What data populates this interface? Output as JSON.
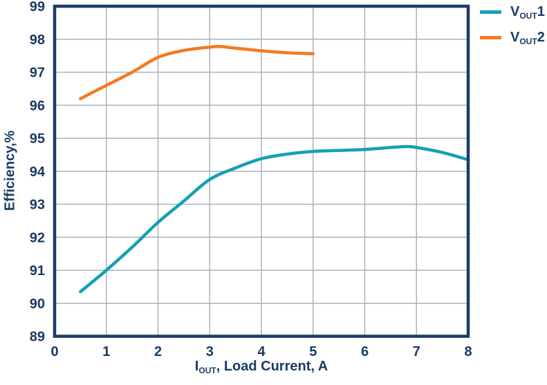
{
  "chart_data": {
    "type": "line",
    "title": "",
    "xlabel_parts": [
      {
        "text": "I"
      },
      {
        "text": "OUT",
        "sub": true
      },
      {
        "text": ", Load Current, A"
      }
    ],
    "ylabel": "Efficiency,%",
    "xlim": [
      0,
      8
    ],
    "ylim": [
      89,
      99
    ],
    "x_ticks": [
      0,
      1,
      2,
      3,
      4,
      5,
      6,
      7,
      8
    ],
    "y_ticks": [
      89,
      90,
      91,
      92,
      93,
      94,
      95,
      96,
      97,
      98,
      99
    ],
    "grid": true,
    "legend_position": "top-right-outside",
    "series": [
      {
        "name": "VOUT1",
        "name_parts": [
          {
            "text": "V"
          },
          {
            "text": "OUT",
            "sub": true
          },
          {
            "text": "1"
          }
        ],
        "color": "#15a0b6",
        "x": [
          0.5,
          1,
          1.5,
          2,
          2.5,
          3,
          3.5,
          4,
          4.5,
          5,
          5.5,
          6,
          6.5,
          6.8,
          7,
          7.5,
          8
        ],
        "y": [
          90.35,
          91.0,
          91.7,
          92.45,
          93.1,
          93.75,
          94.1,
          94.38,
          94.52,
          94.6,
          94.63,
          94.66,
          94.72,
          94.75,
          94.72,
          94.57,
          94.35
        ]
      },
      {
        "name": "VOUT2",
        "name_parts": [
          {
            "text": "V"
          },
          {
            "text": "OUT",
            "sub": true
          },
          {
            "text": "2"
          }
        ],
        "color": "#f47a20",
        "x": [
          0.5,
          1,
          1.5,
          2,
          2.5,
          3,
          3.2,
          3.5,
          4,
          4.5,
          5
        ],
        "y": [
          96.2,
          96.6,
          97.0,
          97.45,
          97.66,
          97.76,
          97.78,
          97.73,
          97.65,
          97.59,
          97.56
        ]
      }
    ]
  },
  "colors": {
    "axis_text": "#1a3b66",
    "plot_border": "#1a3b66",
    "gridline": "#a9b2bb",
    "background": "#ffffff"
  }
}
